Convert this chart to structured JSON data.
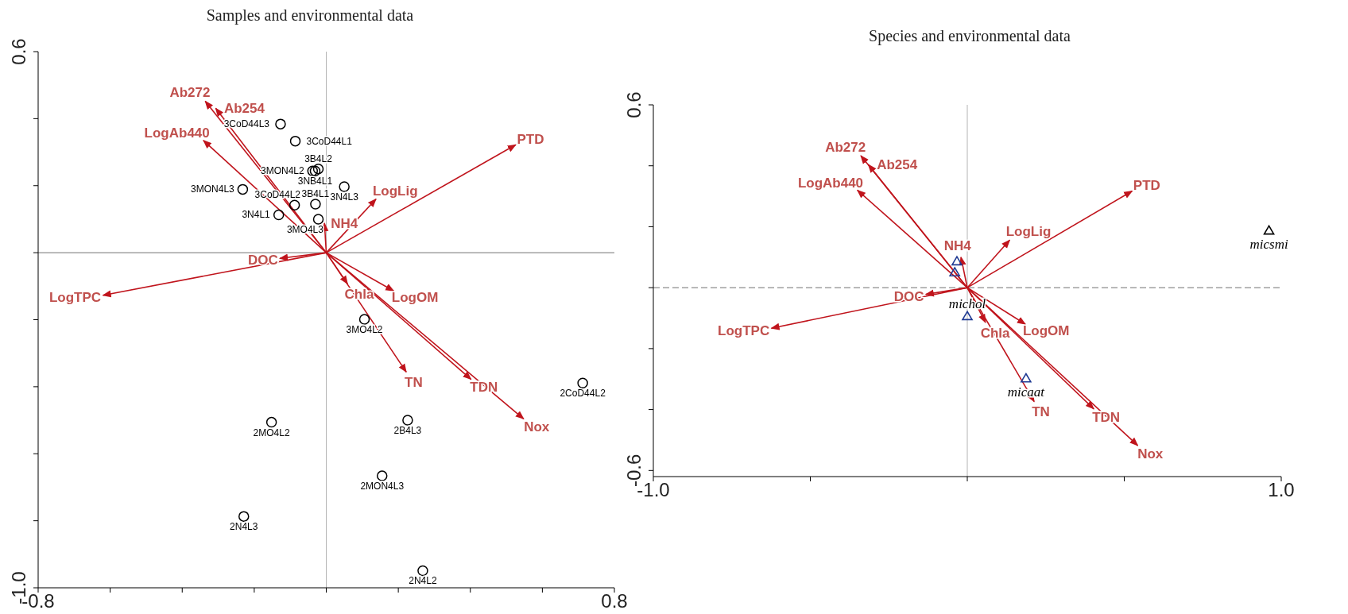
{
  "chart_data": [
    {
      "type": "scatter",
      "title": "Samples and environmental data",
      "xlim": [
        -0.8,
        0.8
      ],
      "ylim": [
        -1.0,
        0.6
      ],
      "xticks": [
        {
          "value": -0.8,
          "label": "-0.8"
        },
        {
          "value": -0.6,
          "label": null
        },
        {
          "value": -0.4,
          "label": null
        },
        {
          "value": -0.2,
          "label": null
        },
        {
          "value": 0,
          "label": null
        },
        {
          "value": 0.2,
          "label": null
        },
        {
          "value": 0.4,
          "label": null
        },
        {
          "value": 0.6,
          "label": null
        },
        {
          "value": 0.8,
          "label": "0.8"
        }
      ],
      "yticks": [
        {
          "value": -1,
          "label": "-1.0"
        },
        {
          "value": -0.8,
          "label": null
        },
        {
          "value": -0.6,
          "label": null
        },
        {
          "value": -0.4,
          "label": null
        },
        {
          "value": -0.2,
          "label": null
        },
        {
          "value": 0,
          "label": null
        },
        {
          "value": 0.2,
          "label": null
        },
        {
          "value": 0.4,
          "label": null
        },
        {
          "value": 0.6,
          "label": "0.6"
        }
      ],
      "ref_lines": [
        {
          "axis": "x",
          "value": 0,
          "color": "#b4b4b4"
        },
        {
          "axis": "y",
          "value": 0,
          "color": "#707070"
        }
      ],
      "series": [
        {
          "type": "scatter",
          "marker": "circle",
          "color": "#000000",
          "x": [
            -0.127,
            -0.086,
            -0.022,
            -0.031,
            -0.038,
            0.05,
            -0.232,
            -0.088,
            -0.03,
            -0.132,
            -0.022,
            0.106,
            0.712,
            -0.152,
            0.226,
            0.155,
            -0.229,
            0.268
          ],
          "values": [
            0.384,
            0.333,
            0.25,
            0.244,
            0.244,
            0.197,
            0.189,
            0.142,
            0.145,
            0.113,
            0.1,
            -0.199,
            -0.389,
            -0.506,
            -0.5,
            -0.666,
            -0.787,
            -0.949
          ],
          "value_labels": [
            "3CoD44L3",
            "3CoD44L1",
            "3B4L2",
            "3NB4L1",
            "3MON4L2",
            "3N4L3",
            "3MON4L3",
            "3CoD44L2",
            "3B4L1",
            "3N4L1",
            "3MO4L3",
            "3MO4L2",
            "2CoD44L2",
            "2MO4L2",
            "2B4L3",
            "2MON4L3",
            "2N4L3",
            "2N4L2"
          ]
        },
        {
          "type": "line",
          "name": "Ab272",
          "color": "#c0141c",
          "x": [
            0,
            -0.336
          ],
          "values": [
            0,
            0.452
          ]
        },
        {
          "type": "line",
          "name": "Ab254",
          "color": "#c0141c",
          "x": [
            0,
            -0.307
          ],
          "values": [
            0,
            0.431
          ]
        },
        {
          "type": "line",
          "name": "LogAb440",
          "color": "#c0141c",
          "x": [
            0,
            -0.341
          ],
          "values": [
            0,
            0.335
          ]
        },
        {
          "type": "line",
          "name": "PTD",
          "color": "#c0141c",
          "x": [
            0,
            0.526
          ],
          "values": [
            0,
            0.322
          ]
        },
        {
          "type": "line",
          "name": "LogLig",
          "color": "#c0141c",
          "x": [
            0,
            0.138
          ],
          "values": [
            0,
            0.16
          ]
        },
        {
          "type": "line",
          "name": "NH4",
          "color": "#c0141c",
          "x": [
            0,
            -0.005
          ],
          "values": [
            0,
            0.088
          ]
        },
        {
          "type": "line",
          "name": "DOC",
          "color": "#c0141c",
          "x": [
            0,
            -0.129
          ],
          "values": [
            0,
            -0.017
          ]
        },
        {
          "type": "line",
          "name": "LogTPC",
          "color": "#c0141c",
          "x": [
            0,
            -0.62
          ],
          "values": [
            0,
            -0.127
          ]
        },
        {
          "type": "line",
          "name": "Chla",
          "color": "#c0141c",
          "x": [
            0,
            0.059
          ],
          "values": [
            0,
            -0.093
          ]
        },
        {
          "type": "line",
          "name": "LogOM",
          "color": "#c0141c",
          "x": [
            0,
            0.187
          ],
          "values": [
            0,
            -0.114
          ]
        },
        {
          "type": "line",
          "name": "TN",
          "color": "#c0141c",
          "x": [
            0,
            0.222
          ],
          "values": [
            0,
            -0.356
          ]
        },
        {
          "type": "line",
          "name": "TDN",
          "color": "#c0141c",
          "x": [
            0,
            0.402
          ],
          "values": [
            0,
            -0.378
          ]
        },
        {
          "type": "line",
          "name": "Nox",
          "color": "#c0141c",
          "x": [
            0,
            0.548
          ],
          "values": [
            0,
            -0.496
          ]
        }
      ]
    },
    {
      "type": "scatter",
      "title": "Species and environmental data",
      "xlim": [
        -1.0,
        1.0
      ],
      "ylim": [
        -0.62,
        0.6
      ],
      "xticks": [
        {
          "value": -1,
          "label": "-1.0"
        },
        {
          "value": -0.5,
          "label": null
        },
        {
          "value": 0,
          "label": null
        },
        {
          "value": 0.5,
          "label": null
        },
        {
          "value": 1,
          "label": "1.0"
        }
      ],
      "yticks": [
        {
          "value": -0.6,
          "label": "-0.6"
        },
        {
          "value": -0.4,
          "label": null
        },
        {
          "value": -0.2,
          "label": null
        },
        {
          "value": 0,
          "label": null
        },
        {
          "value": 0.2,
          "label": null
        },
        {
          "value": 0.4,
          "label": null
        },
        {
          "value": 0.6,
          "label": "0.6"
        }
      ],
      "ref_lines": [
        {
          "axis": "x",
          "value": 0,
          "color": "#b4b4b4"
        },
        {
          "axis": "y",
          "value": 0,
          "color": "#707070",
          "line_style": "dashed"
        }
      ],
      "series": [
        {
          "type": "scatter",
          "marker": "triangle",
          "colors": [
            "#000000",
            "#1f3a93",
            "#1f3a93",
            "#1f3a93",
            "#1f3a93"
          ],
          "x": [
            0.961,
            -0.033,
            -0.04,
            0,
            0.187
          ],
          "values": [
            0.187,
            0.086,
            0.05,
            -0.094,
            -0.298
          ],
          "value_labels": [
            "micsmi",
            null,
            null,
            "michol",
            "micaat"
          ]
        },
        {
          "type": "line",
          "name": "Ab272",
          "color": "#c0141c",
          "x": [
            0,
            -0.339
          ],
          "values": [
            0,
            0.433
          ]
        },
        {
          "type": "line",
          "name": "Ab254",
          "color": "#c0141c",
          "x": [
            0,
            -0.315
          ],
          "values": [
            0,
            0.404
          ]
        },
        {
          "type": "line",
          "name": "LogAb440",
          "color": "#c0141c",
          "x": [
            0,
            -0.35
          ],
          "values": [
            0,
            0.32
          ]
        },
        {
          "type": "line",
          "name": "PTD",
          "color": "#c0141c",
          "x": [
            0,
            0.525
          ],
          "values": [
            0,
            0.317
          ]
        },
        {
          "type": "line",
          "name": "LogLig",
          "color": "#c0141c",
          "x": [
            0,
            0.135
          ],
          "values": [
            0,
            0.156
          ]
        },
        {
          "type": "line",
          "name": "NH4",
          "color": "#c0141c",
          "x": [
            0,
            -0.02
          ],
          "values": [
            0,
            0.1
          ]
        },
        {
          "type": "line",
          "name": "DOC",
          "color": "#c0141c",
          "x": [
            0,
            -0.132
          ],
          "values": [
            0,
            -0.022
          ]
        },
        {
          "type": "line",
          "name": "LogTPC",
          "color": "#c0141c",
          "x": [
            0,
            -0.624
          ],
          "values": [
            0,
            -0.133
          ]
        },
        {
          "type": "line",
          "name": "Chla",
          "color": "#c0141c",
          "x": [
            0,
            0.058
          ],
          "values": [
            0,
            -0.114
          ]
        },
        {
          "type": "line",
          "name": "LogOM",
          "color": "#c0141c",
          "x": [
            0,
            0.185
          ],
          "values": [
            0,
            -0.12
          ]
        },
        {
          "type": "line",
          "name": "TN",
          "color": "#c0141c",
          "x": [
            0,
            0.213
          ],
          "values": [
            0,
            -0.374
          ]
        },
        {
          "type": "line",
          "name": "TDN",
          "color": "#c0141c",
          "x": [
            0,
            0.403
          ],
          "values": [
            0,
            -0.398
          ]
        },
        {
          "type": "line",
          "name": "Nox",
          "color": "#c0141c",
          "x": [
            0,
            0.543
          ],
          "values": [
            0,
            -0.518
          ]
        }
      ]
    }
  ]
}
